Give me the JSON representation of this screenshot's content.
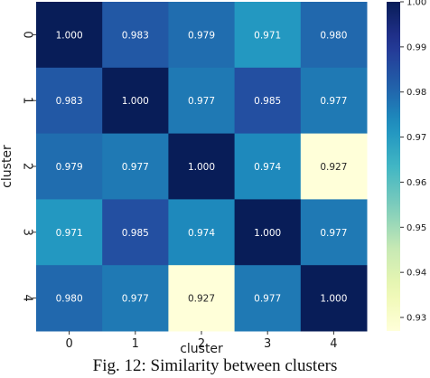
{
  "caption": "Fig. 12: Similarity between clusters",
  "chart_data": {
    "type": "heatmap",
    "title": "",
    "xlabel": "cluster",
    "ylabel": "cluster",
    "x_categories": [
      "0",
      "1",
      "2",
      "3",
      "4"
    ],
    "y_categories": [
      "0",
      "1",
      "2",
      "3",
      "4"
    ],
    "values": [
      [
        1.0,
        0.983,
        0.979,
        0.971,
        0.98
      ],
      [
        0.983,
        1.0,
        0.977,
        0.985,
        0.977
      ],
      [
        0.979,
        0.977,
        1.0,
        0.974,
        0.927
      ],
      [
        0.971,
        0.985,
        0.974,
        1.0,
        0.977
      ],
      [
        0.98,
        0.977,
        0.927,
        0.977,
        1.0
      ]
    ],
    "value_format": "3 decimals",
    "colormap": "YlGnBu",
    "colorbar": {
      "min": 0.927,
      "max": 1.0,
      "ticks": [
        0.93,
        0.94,
        0.95,
        0.96,
        0.97,
        0.98,
        0.99,
        1.0
      ],
      "tick_labels": [
        "0.93",
        "0.94",
        "0.95",
        "0.96",
        "0.97",
        "0.98",
        "0.99",
        "1.00"
      ]
    },
    "annotation_colors": {
      "dark_background": "#ffffff",
      "light_background": "#262626"
    }
  }
}
